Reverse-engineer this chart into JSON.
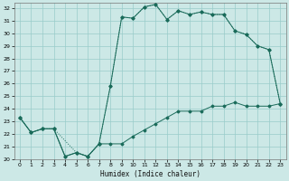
{
  "xlabel": "Humidex (Indice chaleur)",
  "bg_color": "#cce8e6",
  "line_color": "#1a6b5a",
  "grid_color": "#99ccca",
  "xlim": [
    -0.5,
    23.5
  ],
  "ylim": [
    20,
    32.4
  ],
  "yticks": [
    20,
    21,
    22,
    23,
    24,
    25,
    26,
    27,
    28,
    29,
    30,
    31,
    32
  ],
  "xticks": [
    0,
    1,
    2,
    3,
    4,
    5,
    6,
    7,
    8,
    9,
    10,
    11,
    12,
    13,
    14,
    15,
    16,
    17,
    18,
    19,
    20,
    21,
    22,
    23
  ],
  "series1_x": [
    0,
    1,
    2,
    3,
    4,
    5,
    6,
    7,
    8,
    9,
    10,
    11,
    12,
    13,
    14,
    15,
    16,
    17,
    18,
    19,
    20,
    21,
    22,
    23
  ],
  "series1_y": [
    23.3,
    22.1,
    22.4,
    22.4,
    20.2,
    20.5,
    20.2,
    21.2,
    21.2,
    21.2,
    21.8,
    22.3,
    22.8,
    23.3,
    23.8,
    23.8,
    23.8,
    24.2,
    24.2,
    24.5,
    24.2,
    24.2,
    24.2,
    24.4
  ],
  "series2_x": [
    0,
    1,
    2,
    3,
    4,
    5,
    6,
    7,
    8,
    9,
    10,
    11,
    12,
    13,
    14,
    15,
    16,
    17,
    18,
    19,
    20,
    21,
    22,
    23
  ],
  "series2_y": [
    23.3,
    22.1,
    22.4,
    22.4,
    20.2,
    20.5,
    20.2,
    21.2,
    25.8,
    31.3,
    31.2,
    32.1,
    32.3,
    31.1,
    31.8,
    31.5,
    31.7,
    31.5,
    31.5,
    30.2,
    29.9,
    29.0,
    28.7,
    24.4
  ],
  "series3_x": [
    0,
    1,
    2,
    3,
    5,
    6,
    7,
    8,
    9,
    10,
    11,
    12,
    13,
    14,
    15,
    16,
    17,
    18,
    19,
    20,
    21,
    22,
    23
  ],
  "series3_y": [
    23.3,
    22.1,
    22.4,
    22.4,
    20.5,
    20.2,
    21.2,
    25.8,
    31.3,
    31.2,
    32.1,
    32.3,
    31.1,
    31.8,
    31.5,
    31.7,
    31.5,
    31.5,
    30.2,
    29.9,
    29.0,
    28.7,
    24.4
  ]
}
